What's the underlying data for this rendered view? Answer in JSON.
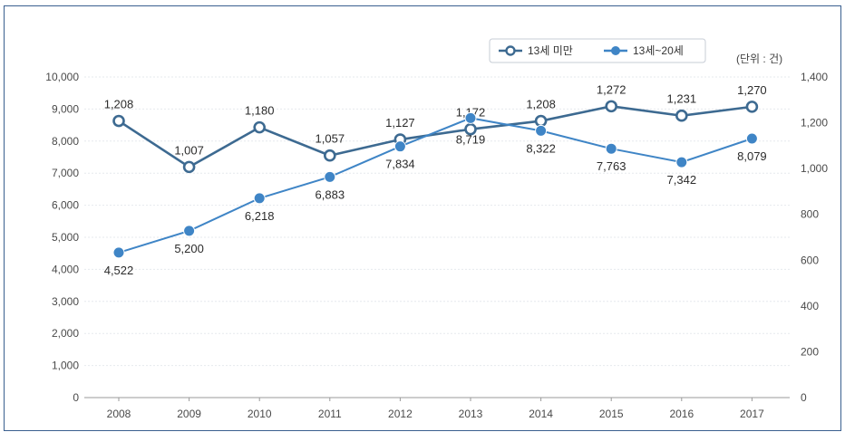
{
  "chart_data": {
    "type": "line",
    "unit_label": "(단위 : 건)",
    "categories": [
      "2008",
      "2009",
      "2010",
      "2011",
      "2012",
      "2013",
      "2014",
      "2015",
      "2016",
      "2017"
    ],
    "series": [
      {
        "name": "13세 미만",
        "axis": "right",
        "marker": "hollow-circle",
        "color": "#3d6a91",
        "values": [
          1208,
          1007,
          1180,
          1057,
          1127,
          1172,
          1208,
          1272,
          1231,
          1270
        ],
        "labels": [
          "1,208",
          "1,007",
          "1,180",
          "1,057",
          "1,127",
          "1,172",
          "1,208",
          "1,272",
          "1,231",
          "1,270"
        ]
      },
      {
        "name": "13세~20세",
        "axis": "left",
        "marker": "filled-circle",
        "color": "#3f85c6",
        "values": [
          4522,
          5200,
          6218,
          6883,
          7834,
          8719,
          8322,
          7763,
          7342,
          8079
        ],
        "labels": [
          "4,522",
          "5,200",
          "6,218",
          "6,883",
          "7,834",
          "8,719",
          "8,322",
          "7,763",
          "7,342",
          "8,079"
        ]
      }
    ],
    "y_left": {
      "range": [
        0,
        10000
      ],
      "ticks": [
        0,
        1000,
        2000,
        3000,
        4000,
        5000,
        6000,
        7000,
        8000,
        9000,
        10000
      ],
      "tick_labels": [
        "0",
        "1,000",
        "2,000",
        "3,000",
        "4,000",
        "5,000",
        "6,000",
        "7,000",
        "8,000",
        "9,000",
        "10,000"
      ]
    },
    "y_right": {
      "range": [
        0,
        1400
      ],
      "ticks": [
        0,
        200,
        400,
        600,
        800,
        1000,
        1200,
        1400
      ],
      "tick_labels": [
        "0",
        "200",
        "400",
        "600",
        "800",
        "1,000",
        "1,200",
        "1,400"
      ]
    },
    "grid": true,
    "legend_position": "top-right"
  }
}
